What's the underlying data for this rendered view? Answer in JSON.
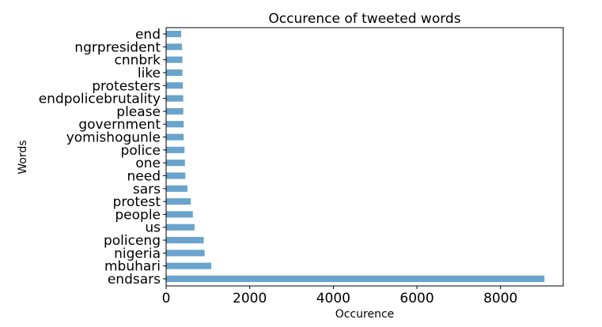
{
  "chart_data": {
    "type": "bar",
    "orientation": "horizontal",
    "title": "Occurence of tweeted words",
    "xlabel": "Occurence",
    "ylabel": "Words",
    "categories": [
      "endsars",
      "mbuhari",
      "nigeria",
      "policeng",
      "us",
      "people",
      "protest",
      "sars",
      "need",
      "one",
      "police",
      "yomishogunle",
      "government",
      "please",
      "endpolicebrutality",
      "protesters",
      "like",
      "cnnbrk",
      "ngrpresident",
      "end"
    ],
    "values": [
      9050,
      1080,
      920,
      900,
      680,
      640,
      590,
      510,
      460,
      450,
      440,
      420,
      420,
      410,
      410,
      400,
      390,
      390,
      380,
      360
    ],
    "xlim": [
      0,
      9500
    ],
    "xticks": [
      0,
      2000,
      4000,
      6000,
      8000
    ],
    "grid": false,
    "legend": "none",
    "bar_color": "#6aa4cc"
  }
}
